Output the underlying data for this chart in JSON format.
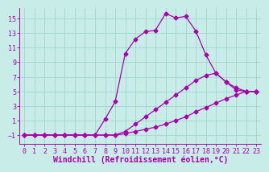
{
  "bg_color": "#c8ece8",
  "line_color": "#aa00aa",
  "grid_color": "#a8d8d4",
  "xlabel": "Windchill (Refroidissement éolien,°C)",
  "xlim": [
    -0.5,
    23.5
  ],
  "ylim": [
    -2.2,
    16.5
  ],
  "yticks": [
    -1,
    1,
    3,
    5,
    7,
    9,
    11,
    13,
    15
  ],
  "xticks": [
    0,
    1,
    2,
    3,
    4,
    5,
    6,
    7,
    8,
    9,
    10,
    11,
    12,
    13,
    14,
    15,
    16,
    17,
    18,
    19,
    20,
    21,
    22,
    23
  ],
  "curve1_x": [
    0,
    1,
    2,
    3,
    4,
    5,
    6,
    7,
    8,
    9,
    10,
    11,
    12,
    13,
    14,
    15,
    16,
    17,
    18,
    19,
    20,
    21,
    22,
    23
  ],
  "curve1_y": [
    -1,
    -1,
    -1,
    -1,
    -1,
    -1,
    -1,
    -1,
    1.2,
    3.6,
    10.2,
    12.2,
    13.2,
    13.4,
    15.7,
    15.1,
    15.3,
    13.3,
    10.0,
    7.5,
    6.3,
    5.2,
    5.0,
    5.0
  ],
  "curve2_x": [
    0,
    1,
    2,
    3,
    4,
    5,
    6,
    7,
    8,
    9,
    10,
    11,
    12,
    13,
    14,
    15,
    16,
    17,
    18,
    19,
    20,
    21,
    22,
    23
  ],
  "curve2_y": [
    -1,
    -1,
    -1,
    -1,
    -1,
    -1,
    -1,
    -1,
    -1,
    -1,
    -0.5,
    0.5,
    1.5,
    2.5,
    3.5,
    4.5,
    5.5,
    6.5,
    7.2,
    7.5,
    6.3,
    5.5,
    5.0,
    5.0
  ],
  "curve3_x": [
    0,
    1,
    2,
    3,
    4,
    5,
    6,
    7,
    8,
    9,
    10,
    11,
    12,
    13,
    14,
    15,
    16,
    17,
    18,
    19,
    20,
    21,
    22,
    23
  ],
  "curve3_y": [
    -1,
    -1,
    -1,
    -1,
    -1,
    -1,
    -1,
    -1,
    -1,
    -1,
    -0.8,
    -0.5,
    -0.2,
    0.1,
    0.5,
    1.0,
    1.5,
    2.2,
    2.8,
    3.4,
    4.0,
    4.5,
    5.0,
    5.0
  ],
  "font_family": "monospace",
  "xlabel_fontsize": 7.0,
  "tick_fontsize": 6.0
}
